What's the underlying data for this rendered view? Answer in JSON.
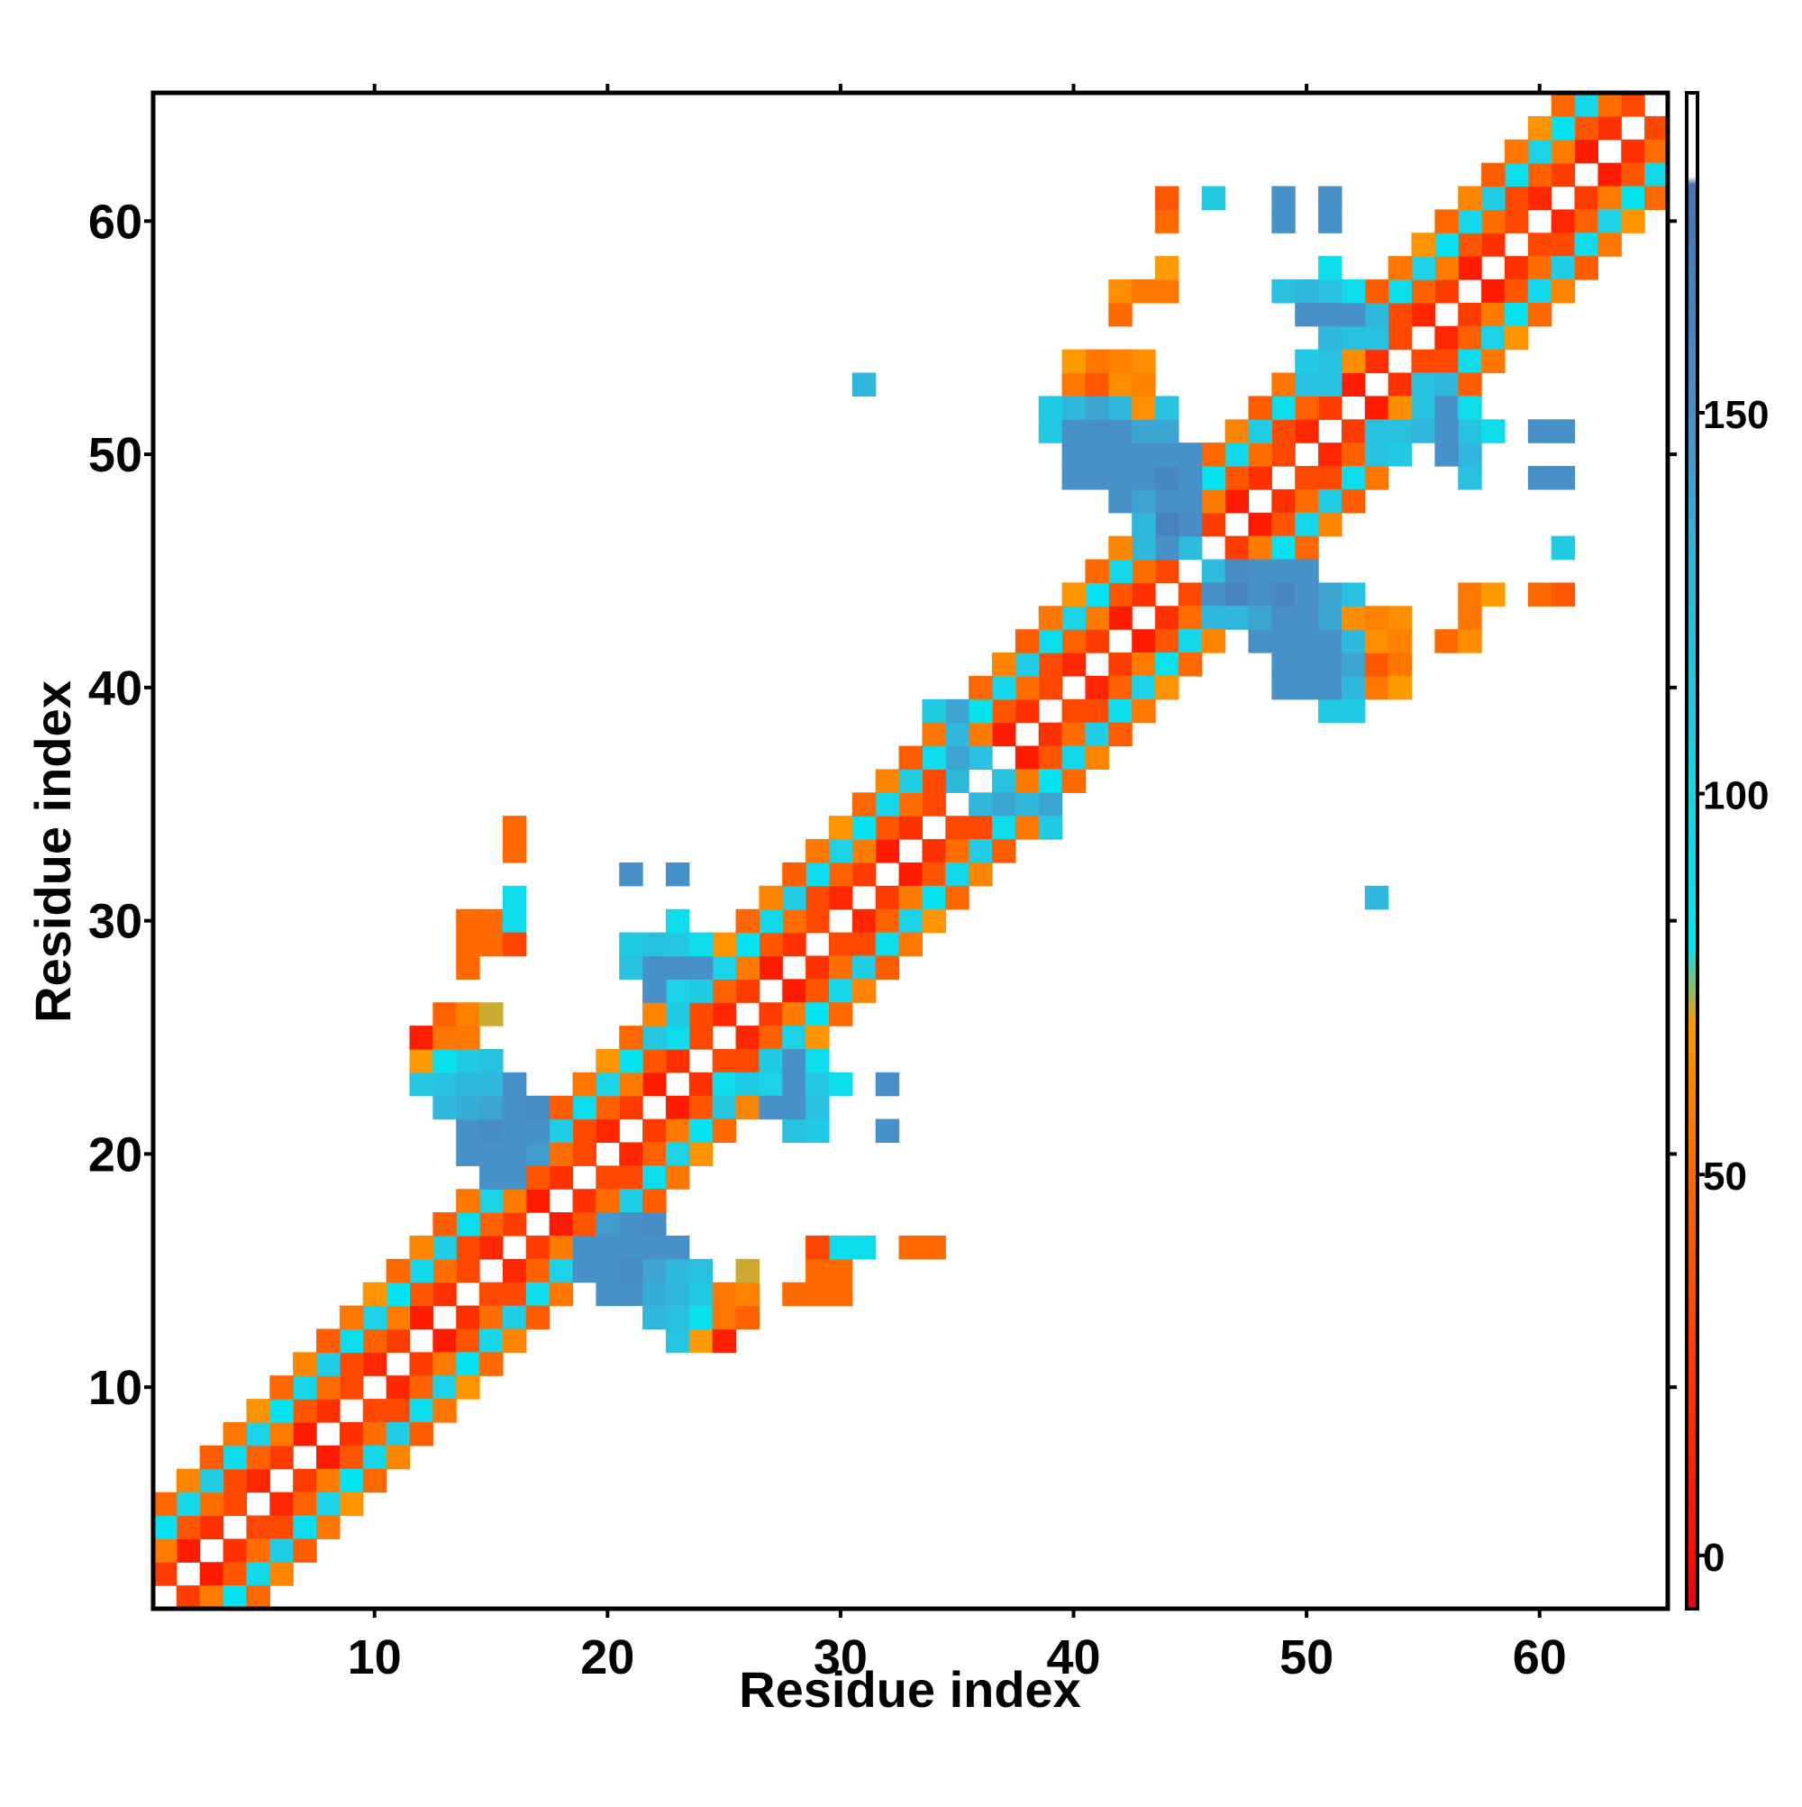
{
  "chart_data": {
    "type": "heatmap",
    "xlabel": "Residue index",
    "ylabel": "Residue index",
    "xlim": [
      0.5,
      65.5
    ],
    "ylim": [
      0.5,
      65.5
    ],
    "x_ticks": [
      10,
      20,
      30,
      40,
      50,
      60
    ],
    "y_ticks": [
      10,
      20,
      30,
      40,
      50,
      60
    ],
    "colorbar": {
      "range": [
        -7,
        192
      ],
      "ticks": [
        0,
        50,
        100,
        150
      ],
      "stops": [
        {
          "value": -7,
          "color": "#e8001c"
        },
        {
          "value": 0,
          "color": "#ff0d00"
        },
        {
          "value": 25,
          "color": "#ff3a00"
        },
        {
          "value": 50,
          "color": "#ff6a00"
        },
        {
          "value": 70,
          "color": "#ff9a00"
        },
        {
          "value": 80,
          "color": "#00e6f0"
        },
        {
          "value": 100,
          "color": "#1ad3e6"
        },
        {
          "value": 130,
          "color": "#2fb8dc"
        },
        {
          "value": 150,
          "color": "#4891c8"
        },
        {
          "value": 180,
          "color": "#4a74b4"
        },
        {
          "value": 181,
          "color": "#ffffff"
        },
        {
          "value": 192,
          "color": "#ffffff"
        }
      ]
    },
    "diagonal_bands": [
      {
        "offset": 1,
        "from": 1,
        "to": 64,
        "value": 20
      },
      {
        "offset": 2,
        "from": 1,
        "to": 63,
        "value": 45
      },
      {
        "offset": 3,
        "from": 1,
        "to": 62,
        "value": 95
      },
      {
        "offset": 4,
        "from": 1,
        "to": 61,
        "value": 55
      }
    ],
    "cells": [
      {
        "x": 14,
        "y": 20,
        "v": 150
      },
      {
        "x": 15,
        "y": 20,
        "v": 155
      },
      {
        "x": 16,
        "y": 20,
        "v": 150
      },
      {
        "x": 17,
        "y": 20,
        "v": 145
      },
      {
        "x": 14,
        "y": 21,
        "v": 150
      },
      {
        "x": 15,
        "y": 21,
        "v": 160
      },
      {
        "x": 16,
        "y": 21,
        "v": 155
      },
      {
        "x": 17,
        "y": 21,
        "v": 150
      },
      {
        "x": 13,
        "y": 22,
        "v": 130
      },
      {
        "x": 14,
        "y": 22,
        "v": 140
      },
      {
        "x": 15,
        "y": 22,
        "v": 150
      },
      {
        "x": 16,
        "y": 22,
        "v": 150
      },
      {
        "x": 17,
        "y": 22,
        "v": 155
      },
      {
        "x": 12,
        "y": 23,
        "v": 110
      },
      {
        "x": 13,
        "y": 23,
        "v": 120
      },
      {
        "x": 14,
        "y": 23,
        "v": 135
      },
      {
        "x": 15,
        "y": 23,
        "v": 140
      },
      {
        "x": 16,
        "y": 23,
        "v": 150
      },
      {
        "x": 12,
        "y": 24,
        "v": 65
      },
      {
        "x": 13,
        "y": 24,
        "v": 85
      },
      {
        "x": 14,
        "y": 24,
        "v": 115
      },
      {
        "x": 15,
        "y": 24,
        "v": 120
      },
      {
        "x": 12,
        "y": 25,
        "v": 5
      },
      {
        "x": 13,
        "y": 25,
        "v": 25
      },
      {
        "x": 14,
        "y": 25,
        "v": 55
      },
      {
        "x": 13,
        "y": 26,
        "v": 45
      },
      {
        "x": 14,
        "y": 26,
        "v": 60
      },
      {
        "x": 15,
        "y": 26,
        "v": 72
      },
      {
        "x": 14,
        "y": 29,
        "v": 50
      },
      {
        "x": 14,
        "y": 30,
        "v": 50
      },
      {
        "x": 15,
        "y": 30,
        "v": 50
      },
      {
        "x": 16,
        "y": 30,
        "v": 50
      },
      {
        "x": 16,
        "y": 31,
        "v": 90
      },
      {
        "x": 16,
        "y": 34,
        "v": 50
      },
      {
        "x": 19,
        "y": 15,
        "v": 150
      },
      {
        "x": 20,
        "y": 15,
        "v": 150
      },
      {
        "x": 21,
        "y": 15,
        "v": 155
      },
      {
        "x": 22,
        "y": 15,
        "v": 140
      },
      {
        "x": 23,
        "y": 15,
        "v": 130
      },
      {
        "x": 19,
        "y": 16,
        "v": 150
      },
      {
        "x": 20,
        "y": 16,
        "v": 150
      },
      {
        "x": 21,
        "y": 16,
        "v": 150
      },
      {
        "x": 22,
        "y": 16,
        "v": 150
      },
      {
        "x": 20,
        "y": 14,
        "v": 150
      },
      {
        "x": 21,
        "y": 14,
        "v": 150
      },
      {
        "x": 22,
        "y": 14,
        "v": 135
      },
      {
        "x": 23,
        "y": 14,
        "v": 130
      },
      {
        "x": 24,
        "y": 14,
        "v": 110
      },
      {
        "x": 22,
        "y": 13,
        "v": 130
      },
      {
        "x": 23,
        "y": 13,
        "v": 120
      },
      {
        "x": 24,
        "y": 13,
        "v": 85
      },
      {
        "x": 23,
        "y": 12,
        "v": 115
      },
      {
        "x": 24,
        "y": 12,
        "v": 70
      },
      {
        "x": 25,
        "y": 12,
        "v": 10
      },
      {
        "x": 25,
        "y": 14,
        "v": 55
      },
      {
        "x": 26,
        "y": 14,
        "v": 60
      },
      {
        "x": 26,
        "y": 15,
        "v": 72
      },
      {
        "x": 25,
        "y": 13,
        "v": 55
      },
      {
        "x": 26,
        "y": 13,
        "v": 45
      },
      {
        "x": 28,
        "y": 14,
        "v": 50
      },
      {
        "x": 29,
        "y": 14,
        "v": 50
      },
      {
        "x": 29,
        "y": 15,
        "v": 50
      },
      {
        "x": 29,
        "y": 16,
        "v": 30
      },
      {
        "x": 30,
        "y": 16,
        "v": 90
      },
      {
        "x": 33,
        "y": 16,
        "v": 50
      },
      {
        "x": 43,
        "y": 46,
        "v": 130
      },
      {
        "x": 44,
        "y": 46,
        "v": 150
      },
      {
        "x": 45,
        "y": 46,
        "v": 125
      },
      {
        "x": 43,
        "y": 47,
        "v": 160
      },
      {
        "x": 44,
        "y": 47,
        "v": 165
      },
      {
        "x": 45,
        "y": 47,
        "v": 155
      },
      {
        "x": 42,
        "y": 48,
        "v": 150
      },
      {
        "x": 43,
        "y": 48,
        "v": 155
      },
      {
        "x": 44,
        "y": 48,
        "v": 155
      },
      {
        "x": 45,
        "y": 48,
        "v": 155
      },
      {
        "x": 40,
        "y": 49,
        "v": 150
      },
      {
        "x": 41,
        "y": 49,
        "v": 150
      },
      {
        "x": 42,
        "y": 49,
        "v": 150
      },
      {
        "x": 43,
        "y": 49,
        "v": 150
      },
      {
        "x": 44,
        "y": 49,
        "v": 150
      },
      {
        "x": 45,
        "y": 49,
        "v": 155
      },
      {
        "x": 40,
        "y": 50,
        "v": 140
      },
      {
        "x": 41,
        "y": 50,
        "v": 140
      },
      {
        "x": 42,
        "y": 50,
        "v": 140
      },
      {
        "x": 43,
        "y": 50,
        "v": 140
      },
      {
        "x": 44,
        "y": 50,
        "v": 140
      },
      {
        "x": 39,
        "y": 51,
        "v": 110
      },
      {
        "x": 40,
        "y": 51,
        "v": 120
      },
      {
        "x": 41,
        "y": 51,
        "v": 120
      },
      {
        "x": 42,
        "y": 51,
        "v": 120
      },
      {
        "x": 43,
        "y": 51,
        "v": 130
      },
      {
        "x": 40,
        "y": 52,
        "v": 55
      },
      {
        "x": 41,
        "y": 52,
        "v": 50
      },
      {
        "x": 42,
        "y": 52,
        "v": 50
      },
      {
        "x": 43,
        "y": 52,
        "v": 65
      },
      {
        "x": 40,
        "y": 53,
        "v": 70
      },
      {
        "x": 41,
        "y": 53,
        "v": 60
      },
      {
        "x": 42,
        "y": 53,
        "v": 55
      },
      {
        "x": 43,
        "y": 53,
        "v": 70
      },
      {
        "x": 42,
        "y": 56,
        "v": 50
      },
      {
        "x": 42,
        "y": 57,
        "v": 55
      },
      {
        "x": 43,
        "y": 57,
        "v": 65
      },
      {
        "x": 44,
        "y": 57,
        "v": 50
      },
      {
        "x": 44,
        "y": 58,
        "v": 50
      },
      {
        "x": 44,
        "y": 60,
        "v": 50
      },
      {
        "x": 44,
        "y": 61,
        "v": 50
      },
      {
        "x": 46,
        "y": 61,
        "v": 110
      },
      {
        "x": 31,
        "y": 53,
        "v": 130
      },
      {
        "x": 47,
        "y": 43,
        "v": 130
      },
      {
        "x": 48,
        "y": 43,
        "v": 140
      },
      {
        "x": 49,
        "y": 43,
        "v": 150
      },
      {
        "x": 50,
        "y": 43,
        "v": 150
      },
      {
        "x": 51,
        "y": 43,
        "v": 140
      },
      {
        "x": 48,
        "y": 44,
        "v": 150
      },
      {
        "x": 49,
        "y": 44,
        "v": 160
      },
      {
        "x": 50,
        "y": 44,
        "v": 150
      },
      {
        "x": 51,
        "y": 44,
        "v": 140
      },
      {
        "x": 52,
        "y": 44,
        "v": 120
      },
      {
        "x": 49,
        "y": 45,
        "v": 150
      },
      {
        "x": 50,
        "y": 45,
        "v": 150
      },
      {
        "x": 48,
        "y": 45,
        "v": 150
      },
      {
        "x": 49,
        "y": 42,
        "v": 150
      },
      {
        "x": 50,
        "y": 42,
        "v": 150
      },
      {
        "x": 51,
        "y": 42,
        "v": 150
      },
      {
        "x": 52,
        "y": 42,
        "v": 130
      },
      {
        "x": 50,
        "y": 41,
        "v": 150
      },
      {
        "x": 51,
        "y": 41,
        "v": 150
      },
      {
        "x": 52,
        "y": 41,
        "v": 140
      },
      {
        "x": 50,
        "y": 40,
        "v": 150
      },
      {
        "x": 51,
        "y": 40,
        "v": 150
      },
      {
        "x": 52,
        "y": 40,
        "v": 130
      },
      {
        "x": 52,
        "y": 39,
        "v": 110
      },
      {
        "x": 53,
        "y": 43,
        "v": 60
      },
      {
        "x": 54,
        "y": 43,
        "v": 65
      },
      {
        "x": 53,
        "y": 42,
        "v": 65
      },
      {
        "x": 54,
        "y": 42,
        "v": 60
      },
      {
        "x": 53,
        "y": 41,
        "v": 40
      },
      {
        "x": 54,
        "y": 41,
        "v": 55
      },
      {
        "x": 53,
        "y": 40,
        "v": 55
      },
      {
        "x": 54,
        "y": 40,
        "v": 70
      },
      {
        "x": 56,
        "y": 42,
        "v": 50
      },
      {
        "x": 57,
        "y": 42,
        "v": 65
      },
      {
        "x": 57,
        "y": 43,
        "v": 55
      },
      {
        "x": 57,
        "y": 44,
        "v": 55
      },
      {
        "x": 58,
        "y": 44,
        "v": 70
      },
      {
        "x": 60,
        "y": 44,
        "v": 50
      },
      {
        "x": 61,
        "y": 44,
        "v": 40
      },
      {
        "x": 61,
        "y": 46,
        "v": 110
      },
      {
        "x": 53,
        "y": 31,
        "v": 130
      },
      {
        "x": 50,
        "y": 57,
        "v": 110
      },
      {
        "x": 51,
        "y": 57,
        "v": 110
      },
      {
        "x": 52,
        "y": 57,
        "v": 90
      },
      {
        "x": 50,
        "y": 56,
        "v": 150
      },
      {
        "x": 51,
        "y": 56,
        "v": 150
      },
      {
        "x": 52,
        "y": 56,
        "v": 140
      },
      {
        "x": 53,
        "y": 56,
        "v": 130
      },
      {
        "x": 51,
        "y": 55,
        "v": 130
      },
      {
        "x": 52,
        "y": 55,
        "v": 120
      },
      {
        "x": 53,
        "y": 55,
        "v": 120
      },
      {
        "x": 50,
        "y": 54,
        "v": 110
      },
      {
        "x": 51,
        "y": 54,
        "v": 120
      },
      {
        "x": 52,
        "y": 54,
        "v": 65
      },
      {
        "x": 50,
        "y": 53,
        "v": 120
      },
      {
        "x": 51,
        "y": 53,
        "v": 120
      },
      {
        "x": 49,
        "y": 60,
        "v": 150
      },
      {
        "x": 51,
        "y": 60,
        "v": 150
      },
      {
        "x": 56,
        "y": 52,
        "v": 150
      },
      {
        "x": 56,
        "y": 51,
        "v": 150
      },
      {
        "x": 56,
        "y": 50,
        "v": 150
      },
      {
        "x": 56,
        "y": 53,
        "v": 130
      },
      {
        "x": 57,
        "y": 52,
        "v": 90
      },
      {
        "x": 57,
        "y": 51,
        "v": 120
      },
      {
        "x": 57,
        "y": 50,
        "v": 130
      },
      {
        "x": 57,
        "y": 49,
        "v": 120
      },
      {
        "x": 58,
        "y": 51,
        "v": 90
      },
      {
        "x": 61,
        "y": 51,
        "v": 150
      },
      {
        "x": 61,
        "y": 49,
        "v": 150
      },
      {
        "x": 22,
        "y": 27,
        "v": 150
      },
      {
        "x": 23,
        "y": 27,
        "v": 145
      },
      {
        "x": 24,
        "y": 27,
        "v": 120
      },
      {
        "x": 21,
        "y": 28,
        "v": 120
      },
      {
        "x": 22,
        "y": 28,
        "v": 110
      },
      {
        "x": 23,
        "y": 28,
        "v": 105
      },
      {
        "x": 23,
        "y": 26,
        "v": 110
      },
      {
        "x": 23,
        "y": 25,
        "v": 90
      },
      {
        "x": 22,
        "y": 25,
        "v": 115
      },
      {
        "x": 23,
        "y": 29,
        "v": 60
      },
      {
        "x": 21,
        "y": 32,
        "v": 150
      },
      {
        "x": 23,
        "y": 32,
        "v": 150
      },
      {
        "x": 27,
        "y": 24,
        "v": 110
      },
      {
        "x": 28,
        "y": 24,
        "v": 150
      },
      {
        "x": 28,
        "y": 23,
        "v": 150
      },
      {
        "x": 29,
        "y": 23,
        "v": 115
      },
      {
        "x": 28,
        "y": 22,
        "v": 150
      },
      {
        "x": 29,
        "y": 22,
        "v": 120
      },
      {
        "x": 29,
        "y": 21,
        "v": 110
      },
      {
        "x": 27,
        "y": 23,
        "v": 100
      },
      {
        "x": 29,
        "y": 24,
        "v": 90
      },
      {
        "x": 30,
        "y": 23,
        "v": 70
      },
      {
        "x": 32,
        "y": 23,
        "v": 150
      },
      {
        "x": 32,
        "y": 21,
        "v": 150
      },
      {
        "x": 36,
        "y": 35,
        "v": 130
      },
      {
        "x": 37,
        "y": 35,
        "v": 140
      },
      {
        "x": 38,
        "y": 35,
        "v": 130
      },
      {
        "x": 37,
        "y": 36,
        "v": 120
      },
      {
        "x": 34,
        "y": 39,
        "v": 110
      },
      {
        "x": 35,
        "y": 39,
        "v": 140
      },
      {
        "x": 35,
        "y": 38,
        "v": 130
      },
      {
        "x": 23,
        "y": 30,
        "v": 90
      }
    ]
  }
}
